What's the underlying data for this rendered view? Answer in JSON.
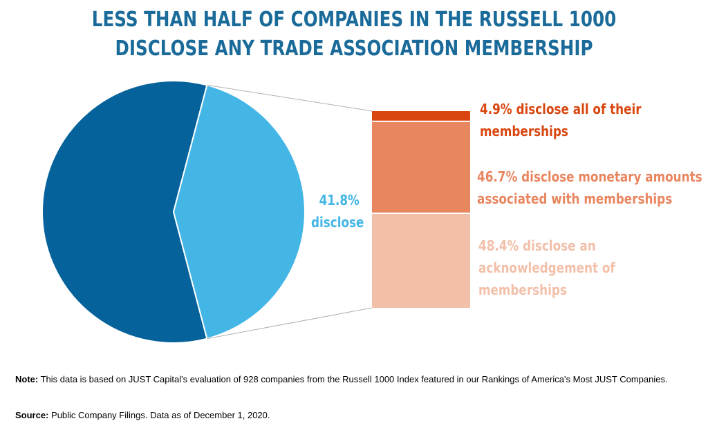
{
  "title": {
    "line1": "LESS THAN HALF OF COMPANIES IN THE RUSSELL 1000",
    "line2": "DISCLOSE ANY TRADE ASSOCIATION MEMBERSHIP"
  },
  "colors": {
    "title": "#1a6b9a",
    "pie_no_disclose": "#05629a",
    "pie_disclose": "#44b6e6",
    "bar_all": "#d9460f",
    "bar_monetary": "#e88660",
    "bar_acknowledge": "#f2bfa9",
    "connector": "#b0b0b0"
  },
  "chart_data": [
    {
      "type": "pie",
      "slices": [
        {
          "label": "disclose",
          "value": 41.8
        },
        {
          "label": "",
          "value": 58.2
        }
      ],
      "data_label": {
        "value": "41.8%",
        "text": "disclose"
      }
    },
    {
      "type": "bar",
      "stacked": true,
      "categories": [
        "disclose"
      ],
      "series": [
        {
          "name": "4.9% disclose all of their memberships",
          "value": 4.9
        },
        {
          "name": "46.7% disclose monetary amounts associated with memberships",
          "value": 46.7
        },
        {
          "name": "48.4% disclose an acknowledgement of memberships",
          "value": 48.4
        }
      ]
    }
  ],
  "labels": {
    "pie_pct": "41.8%",
    "pie_word": "disclose",
    "all_line1": "4.9% disclose all of their",
    "all_line2": "memberships",
    "monetary_line1": "46.7% disclose monetary amounts",
    "monetary_line2": "associated with memberships",
    "ack_line1": "48.4% disclose an",
    "ack_line2": "acknowledgement of",
    "ack_line3": "memberships"
  },
  "footer": {
    "note_label": "Note:",
    "note_text": " This data is based on JUST Capital's evaluation of 928 companies from the Russell 1000 Index featured in our Rankings of America's Most JUST Companies.",
    "source_label": "Source:",
    "source_text": " Public Company Filings. Data as of December 1, 2020."
  }
}
